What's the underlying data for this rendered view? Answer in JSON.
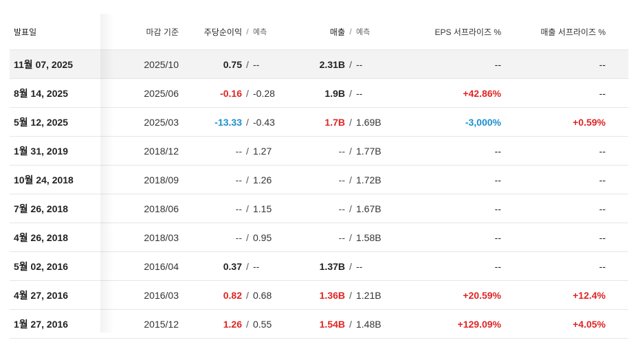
{
  "headers": {
    "date": "발표일",
    "period": "마감 기준",
    "eps": "주당순이익",
    "eps_est": "예측",
    "revenue": "매출",
    "revenue_est": "예측",
    "eps_surprise": "EPS 서프라이즈 %",
    "revenue_surprise": "매출 서프라이즈 %",
    "sep": "/"
  },
  "rows": [
    {
      "date": "11월 07, 2025",
      "period": "2025/10",
      "eps": "0.75",
      "eps_est": "--",
      "revenue": "2.31B",
      "revenue_est": "--",
      "eps_surprise": "--",
      "revenue_surprise": "--",
      "sep": "/"
    },
    {
      "date": "8월 14, 2025",
      "period": "2025/06",
      "eps": "-0.16",
      "eps_est": "-0.28",
      "revenue": "1.9B",
      "revenue_est": "--",
      "eps_surprise": "+42.86%",
      "revenue_surprise": "--",
      "sep": "/"
    },
    {
      "date": "5월 12, 2025",
      "period": "2025/03",
      "eps": "-13.33",
      "eps_est": "-0.43",
      "revenue": "1.7B",
      "revenue_est": "1.69B",
      "eps_surprise": "-3,000%",
      "revenue_surprise": "+0.59%",
      "sep": "/"
    },
    {
      "date": "1월 31, 2019",
      "period": "2018/12",
      "eps": "--",
      "eps_est": "1.27",
      "revenue": "--",
      "revenue_est": "1.77B",
      "eps_surprise": "--",
      "revenue_surprise": "--",
      "sep": "/"
    },
    {
      "date": "10월 24, 2018",
      "period": "2018/09",
      "eps": "--",
      "eps_est": "1.26",
      "revenue": "--",
      "revenue_est": "1.72B",
      "eps_surprise": "--",
      "revenue_surprise": "--",
      "sep": "/"
    },
    {
      "date": "7월 26, 2018",
      "period": "2018/06",
      "eps": "--",
      "eps_est": "1.15",
      "revenue": "--",
      "revenue_est": "1.67B",
      "eps_surprise": "--",
      "revenue_surprise": "--",
      "sep": "/"
    },
    {
      "date": "4월 26, 2018",
      "period": "2018/03",
      "eps": "--",
      "eps_est": "0.95",
      "revenue": "--",
      "revenue_est": "1.58B",
      "eps_surprise": "--",
      "revenue_surprise": "--",
      "sep": "/"
    },
    {
      "date": "5월 02, 2016",
      "period": "2016/04",
      "eps": "0.37",
      "eps_est": "--",
      "revenue": "1.37B",
      "revenue_est": "--",
      "eps_surprise": "--",
      "revenue_surprise": "--",
      "sep": "/"
    },
    {
      "date": "4월 27, 2016",
      "period": "2016/03",
      "eps": "0.82",
      "eps_est": "0.68",
      "revenue": "1.36B",
      "revenue_est": "1.21B",
      "eps_surprise": "+20.59%",
      "revenue_surprise": "+12.4%",
      "sep": "/"
    },
    {
      "date": "1월 27, 2016",
      "period": "2015/12",
      "eps": "1.26",
      "eps_est": "0.55",
      "revenue": "1.54B",
      "revenue_est": "1.48B",
      "eps_surprise": "+129.09%",
      "revenue_surprise": "+4.05%",
      "sep": "/"
    }
  ],
  "colors": {
    "positive": "#e02424",
    "negative": "#1a8fd0",
    "highlight_row": "#f3f3f3"
  },
  "styles": {
    "eps": [
      "neutral",
      "pos",
      "neg",
      "muted",
      "muted",
      "muted",
      "muted",
      "neutral",
      "pos",
      "pos"
    ],
    "revenue": [
      "neutral",
      "neutral",
      "pos",
      "muted",
      "muted",
      "muted",
      "muted",
      "neutral",
      "pos",
      "pos"
    ],
    "eps_surprise": [
      "neutral",
      "pos",
      "neg",
      "neutral",
      "neutral",
      "neutral",
      "neutral",
      "neutral",
      "pos",
      "pos"
    ],
    "revenue_surprise": [
      "neutral",
      "neutral",
      "pos",
      "neutral",
      "neutral",
      "neutral",
      "neutral",
      "neutral",
      "pos",
      "pos"
    ]
  }
}
